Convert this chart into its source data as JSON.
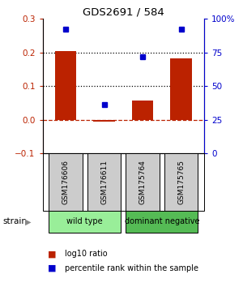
{
  "title": "GDS2691 / 584",
  "samples": [
    "GSM176606",
    "GSM176611",
    "GSM175764",
    "GSM175765"
  ],
  "log10_ratio": [
    0.205,
    -0.005,
    0.058,
    0.182
  ],
  "percentile_rank": [
    92,
    36,
    72,
    92
  ],
  "bar_color": "#bb2200",
  "dot_color": "#0000cc",
  "ylim_left": [
    -0.1,
    0.3
  ],
  "ylim_right": [
    0,
    100
  ],
  "yticks_left": [
    -0.1,
    0.0,
    0.1,
    0.2,
    0.3
  ],
  "yticks_right": [
    0,
    25,
    50,
    75,
    100
  ],
  "dotted_lines": [
    0.1,
    0.2
  ],
  "dashed_line": 0.0,
  "groups": [
    {
      "label": "wild type",
      "cols": [
        0,
        1
      ],
      "color": "#99ee99"
    },
    {
      "label": "dominant negative",
      "cols": [
        2,
        3
      ],
      "color": "#55bb55"
    }
  ],
  "strain_label": "strain",
  "legend_ratio_label": "log10 ratio",
  "legend_rank_label": "percentile rank within the sample",
  "sample_box_color": "#cccccc",
  "bar_width": 0.55
}
